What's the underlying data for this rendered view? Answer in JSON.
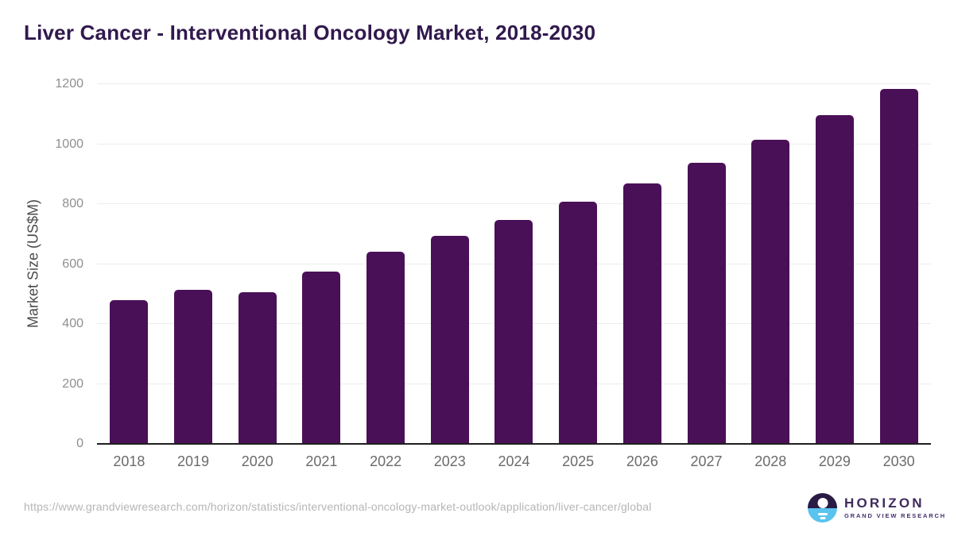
{
  "title": "Liver Cancer - Interventional Oncology Market, 2018-2030",
  "chart_data": {
    "type": "bar",
    "title": "Liver Cancer - Interventional Oncology Market, 2018-2030",
    "categories": [
      "2018",
      "2019",
      "2020",
      "2021",
      "2022",
      "2023",
      "2024",
      "2025",
      "2026",
      "2027",
      "2028",
      "2029",
      "2030"
    ],
    "values": [
      479,
      513,
      505,
      574,
      642,
      694,
      746,
      807,
      870,
      937,
      1014,
      1097,
      1185
    ],
    "xlabel": "",
    "ylabel": "Market Size (US$M)",
    "ylim": [
      0,
      1200
    ],
    "yticks": [
      0,
      200,
      400,
      600,
      800,
      1000,
      1200
    ],
    "grid": "horizontal",
    "legend": "none",
    "bar_color": "#4a1057"
  },
  "footer": {
    "source_url": "https://www.grandviewresearch.com/horizon/statistics/interventional-oncology-market-outlook/application/liver-cancer/global",
    "logo": {
      "brand": "HORIZON",
      "subbrand": "GRAND VIEW RESEARCH",
      "icon": "horizon-sun-over-water-icon"
    }
  },
  "colors": {
    "title_text": "#31194d",
    "bar": "#4a1057",
    "gridline": "#ececec",
    "axis_line": "#1f1f1f",
    "y_tick_text": "#8f8f8f",
    "x_tick_text": "#6b6b6b",
    "y_axis_title_text": "#4a4a4a",
    "source_url_text": "#b5b5b5",
    "logo_purple": "#3f2a5e",
    "logo_icon_dark": "#2a1b45",
    "logo_icon_blue": "#5ac3ee",
    "background": "#ffffff"
  }
}
